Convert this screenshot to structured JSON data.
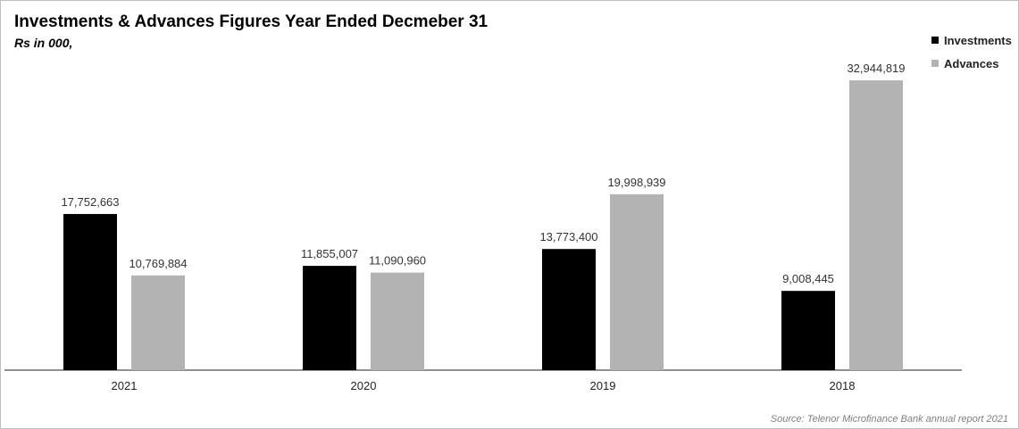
{
  "source_note": "Source: Telenor Microfinance Bank annual report 2021",
  "chart_data": {
    "type": "bar",
    "title": "Investments & Advances Figures Year Ended Decmeber 31",
    "subtitle": "Rs in 000,",
    "categories": [
      "2021",
      "2020",
      "2019",
      "2018"
    ],
    "series": [
      {
        "name": "Investments",
        "color": "#000000",
        "values": [
          17752663,
          11855007,
          13773400,
          9008445
        ],
        "labels": [
          "17,752,663",
          "11,855,007",
          "13,773,400",
          "9,008,445"
        ]
      },
      {
        "name": "Advances",
        "color": "#b3b3b3",
        "values": [
          10769884,
          11090960,
          19998939,
          32944819
        ],
        "labels": [
          "10,769,884",
          "11,090,960",
          "19,998,939",
          "32,944,819"
        ]
      }
    ],
    "ylim": [
      0,
      36000000
    ],
    "grid": false,
    "legend_position": "top-right"
  }
}
